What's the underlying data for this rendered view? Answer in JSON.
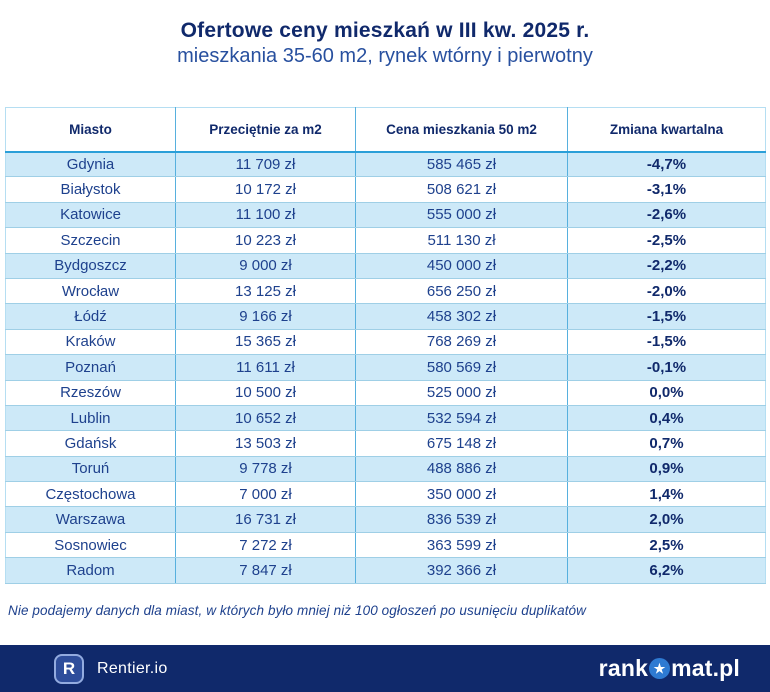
{
  "chart_data": {
    "type": "table",
    "title": "Ofertowe ceny mieszkań w III kw. 2025 r.",
    "subtitle": "mieszkania 35-60 m2, rynek wtórny i pierwotny",
    "columns": [
      "Miasto",
      "Przeciętnie za m2",
      "Cena mieszkania 50 m2",
      "Zmiana kwartalna"
    ],
    "rows": [
      {
        "city": "Gdynia",
        "price_per_m2": "11 709 zł",
        "price_50m2": "585 465 zł",
        "quarterly_change": "-4,7%"
      },
      {
        "city": "Białystok",
        "price_per_m2": "10 172 zł",
        "price_50m2": "508 621 zł",
        "quarterly_change": "-3,1%"
      },
      {
        "city": "Katowice",
        "price_per_m2": "11 100 zł",
        "price_50m2": "555 000 zł",
        "quarterly_change": "-2,6%"
      },
      {
        "city": "Szczecin",
        "price_per_m2": "10 223 zł",
        "price_50m2": "511 130 zł",
        "quarterly_change": "-2,5%"
      },
      {
        "city": "Bydgoszcz",
        "price_per_m2": "9 000 zł",
        "price_50m2": "450 000 zł",
        "quarterly_change": "-2,2%"
      },
      {
        "city": "Wrocław",
        "price_per_m2": "13 125 zł",
        "price_50m2": "656 250 zł",
        "quarterly_change": "-2,0%"
      },
      {
        "city": "Łódź",
        "price_per_m2": "9 166 zł",
        "price_50m2": "458 302 zł",
        "quarterly_change": "-1,5%"
      },
      {
        "city": "Kraków",
        "price_per_m2": "15 365 zł",
        "price_50m2": "768 269 zł",
        "quarterly_change": "-1,5%"
      },
      {
        "city": "Poznań",
        "price_per_m2": "11 611 zł",
        "price_50m2": "580 569 zł",
        "quarterly_change": "-0,1%"
      },
      {
        "city": "Rzeszów",
        "price_per_m2": "10 500 zł",
        "price_50m2": "525 000 zł",
        "quarterly_change": "0,0%"
      },
      {
        "city": "Lublin",
        "price_per_m2": "10 652 zł",
        "price_50m2": "532 594 zł",
        "quarterly_change": "0,4%"
      },
      {
        "city": "Gdańsk",
        "price_per_m2": "13 503 zł",
        "price_50m2": "675 148 zł",
        "quarterly_change": "0,7%"
      },
      {
        "city": "Toruń",
        "price_per_m2": "9 778 zł",
        "price_50m2": "488 886 zł",
        "quarterly_change": "0,9%"
      },
      {
        "city": "Częstochowa",
        "price_per_m2": "7 000 zł",
        "price_50m2": "350 000 zł",
        "quarterly_change": "1,4%"
      },
      {
        "city": "Warszawa",
        "price_per_m2": "16 731 zł",
        "price_50m2": "836 539 zł",
        "quarterly_change": "2,0%"
      },
      {
        "city": "Sosnowiec",
        "price_per_m2": "7 272 zł",
        "price_50m2": "363 599 zł",
        "quarterly_change": "2,5%"
      },
      {
        "city": "Radom",
        "price_per_m2": "7 847 zł",
        "price_50m2": "392 366 zł",
        "quarterly_change": "6,2%"
      }
    ],
    "footnote": "Nie podajemy danych dla miast, w których było mniej niż 100 ogłoszeń po usunięciu duplikatów",
    "layout_hints": {
      "row_striping": "odd rows light blue, even rows white",
      "first_data_row_background": "light-blue"
    }
  },
  "footer": {
    "rentier": {
      "icon_letter": "R",
      "label": "Rentier.io"
    },
    "rankomat": {
      "prefix": "rank",
      "star": "★",
      "suffix": "mat.pl"
    }
  },
  "colors": {
    "title_navy": "#10296b",
    "subtitle_blue": "#28509f",
    "cell_text": "#1e418d",
    "row_light_blue": "#cde9f8",
    "column_line_blue": "#57b0de",
    "row_line_blue": "#9fcfe6",
    "header_underline_blue": "#2b9fd8",
    "footer_background": "#10296b",
    "star_circle_blue": "#2e7ad2"
  }
}
